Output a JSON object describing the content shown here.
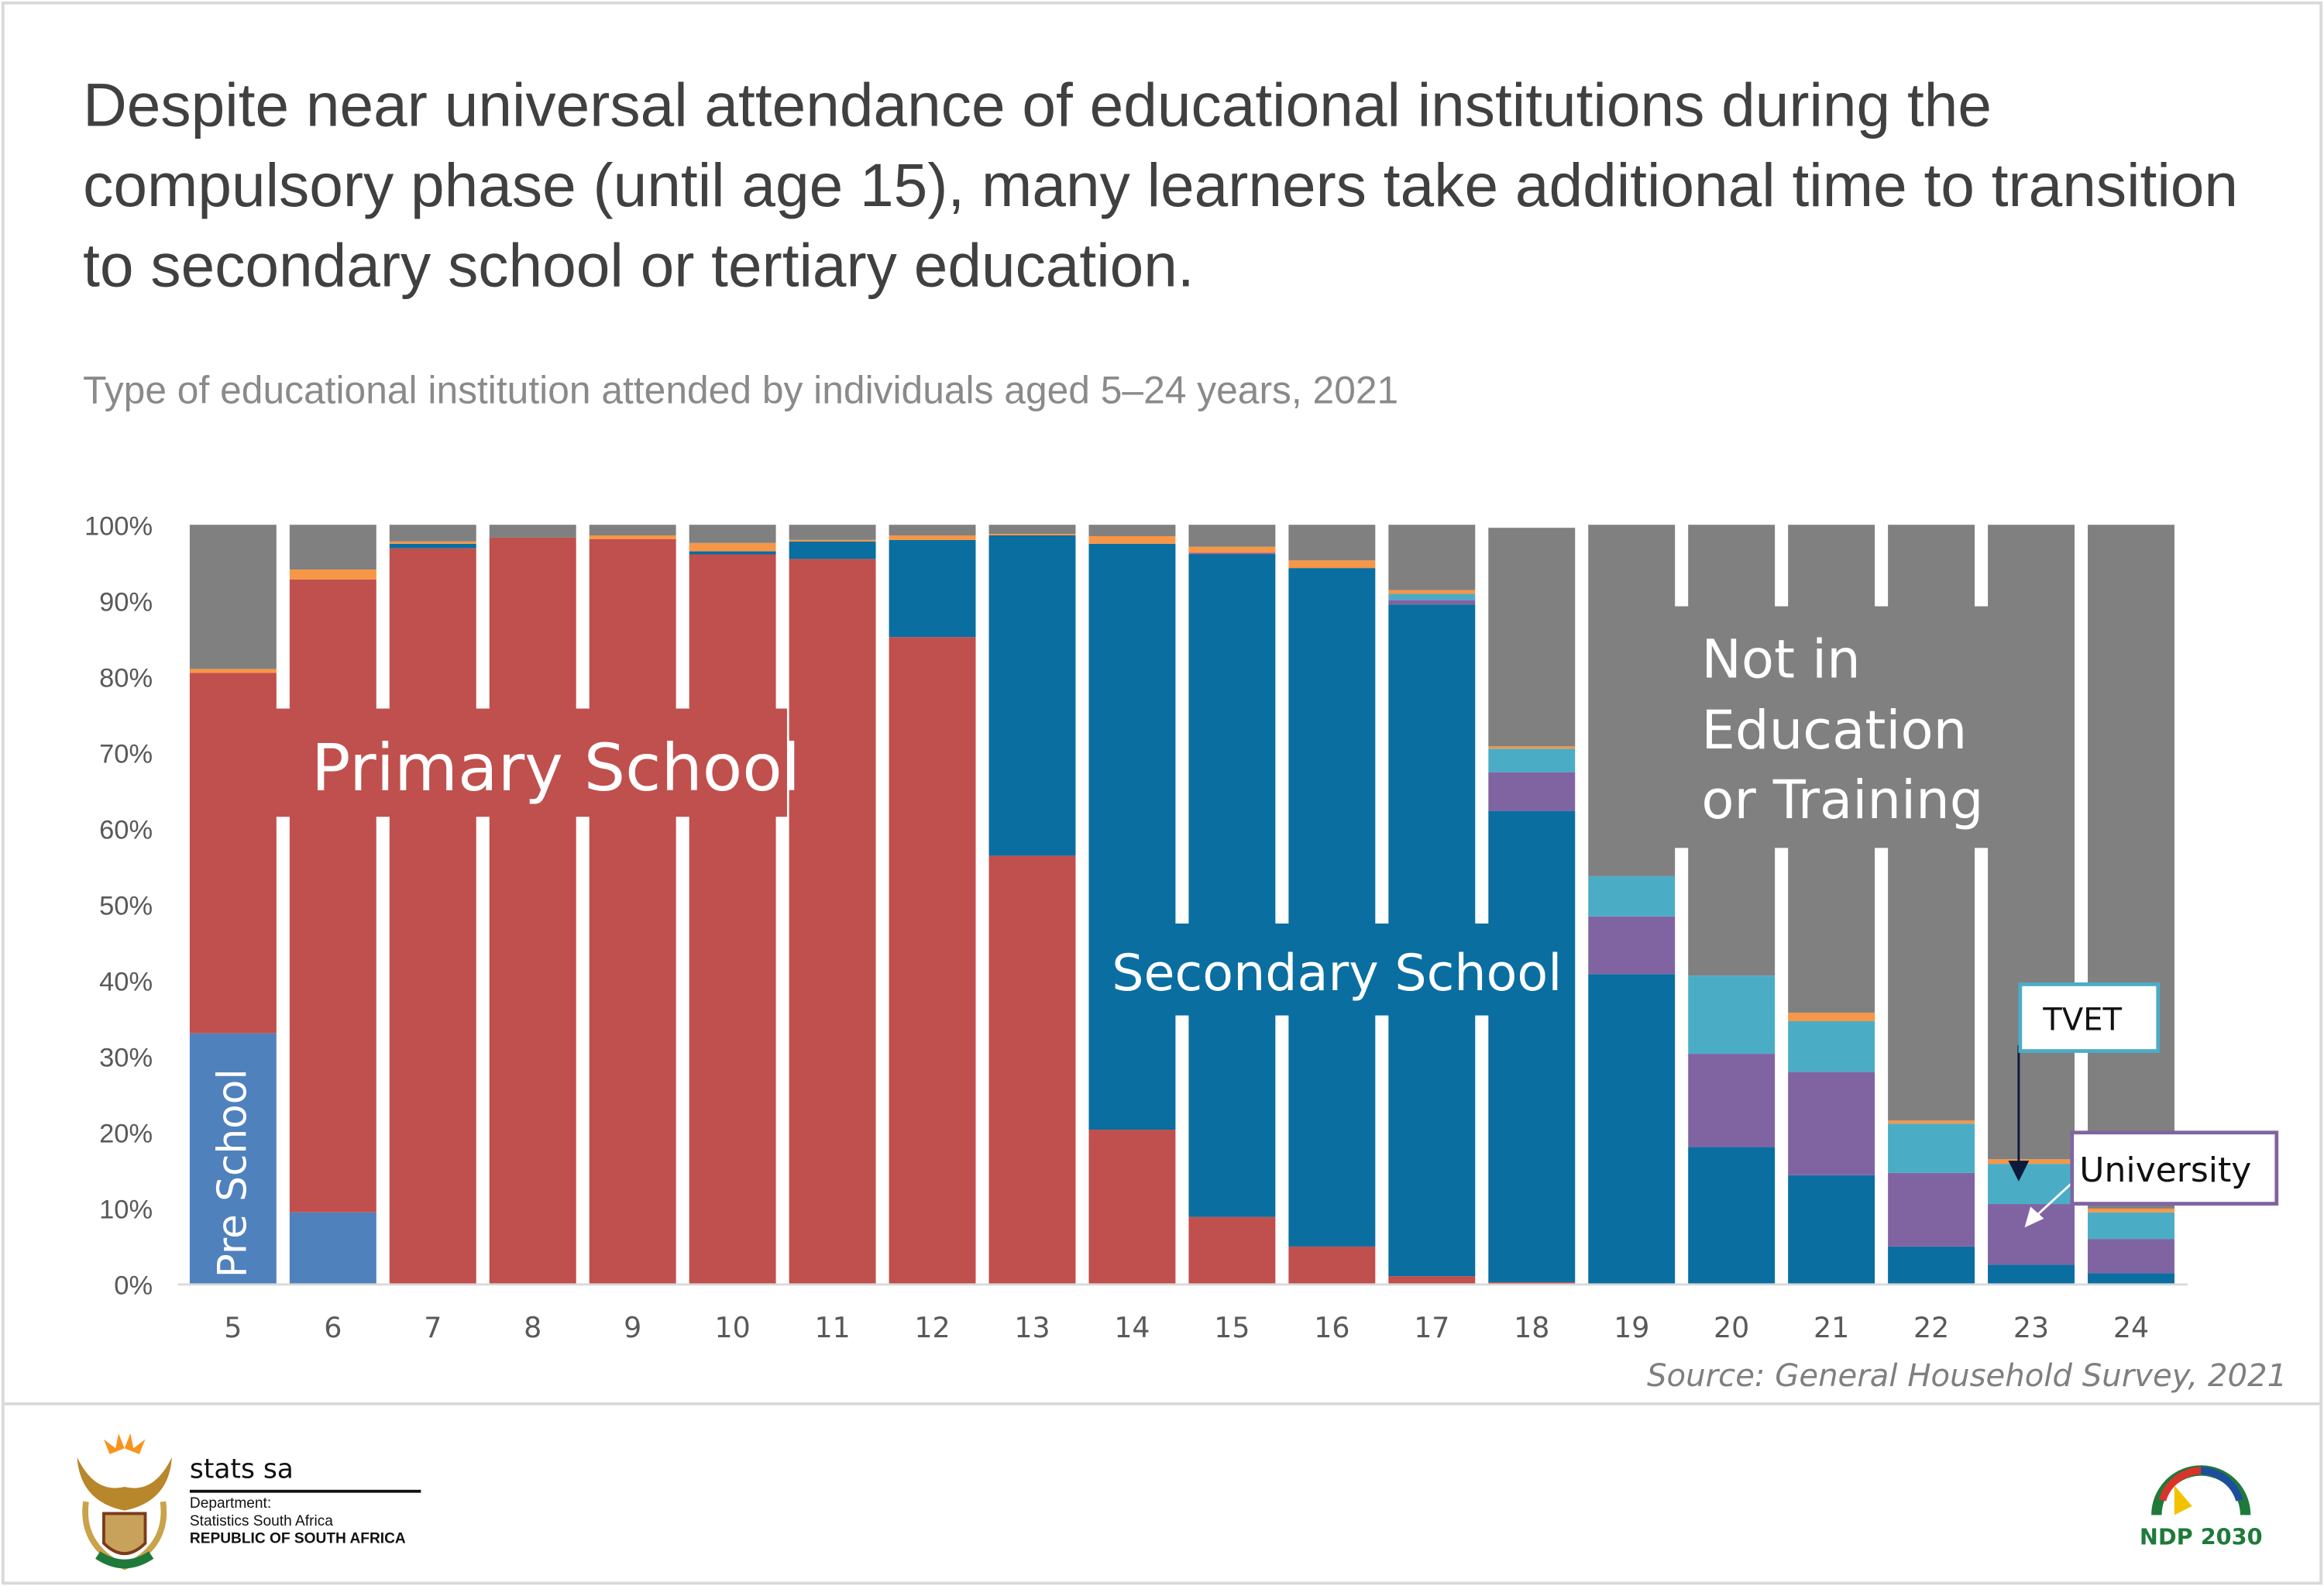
{
  "header": {
    "title": "Despite near universal attendance of educational institutions during the compulsory phase (until age 15), many learners take additional time to transition to secondary school or tertiary education.",
    "subtitle": "Type of educational institution attended by individuals aged 5–24 years, 2021"
  },
  "chart_data": {
    "type": "bar",
    "stacked": true,
    "title": "Type of educational institution attended by individuals aged 5–24 years, 2021",
    "xlabel": "",
    "ylabel": "",
    "ylim": [
      0,
      100
    ],
    "y_ticks": [
      "0%",
      "10%",
      "20%",
      "30%",
      "40%",
      "50%",
      "60%",
      "70%",
      "80%",
      "90%",
      "100%"
    ],
    "grid": false,
    "legend": "none",
    "categories": [
      "5",
      "6",
      "7",
      "8",
      "9",
      "10",
      "11",
      "12",
      "13",
      "14",
      "15",
      "16",
      "17",
      "18",
      "19",
      "20",
      "21",
      "22",
      "23",
      "24"
    ],
    "series": [
      {
        "name": "Pre School",
        "color": "#4F81BD",
        "values": [
          33.0,
          9.4,
          0,
          0,
          0,
          0,
          0,
          0,
          0,
          0,
          0,
          0,
          0,
          0,
          0,
          0,
          0,
          0,
          0,
          0
        ]
      },
      {
        "name": "Primary School",
        "color": "#C0504D",
        "values": [
          47.5,
          83.4,
          96.9,
          98.3,
          98.1,
          96.1,
          95.5,
          85.2,
          56.4,
          20.3,
          8.8,
          4.9,
          1.0,
          0.2,
          0,
          0,
          0,
          0,
          0,
          0
        ]
      },
      {
        "name": "Secondary School",
        "color": "#0A6EA0",
        "values": [
          0,
          0,
          0.6,
          0,
          0,
          0.4,
          2.3,
          12.8,
          42.2,
          77.2,
          87.3,
          89.4,
          88.5,
          62.1,
          40.8,
          18.0,
          14.3,
          4.9,
          2.5,
          1.4
        ]
      },
      {
        "name": "University",
        "color": "#8064A2",
        "values": [
          0,
          0,
          0,
          0,
          0,
          0,
          0,
          0,
          0,
          0,
          0.2,
          0,
          0.6,
          5.1,
          7.6,
          12.3,
          13.6,
          9.7,
          8.0,
          4.5
        ]
      },
      {
        "name": "TVET",
        "color": "#4BACC6",
        "values": [
          0,
          0,
          0,
          0,
          0,
          0,
          0,
          0,
          0,
          0,
          0,
          0,
          0.8,
          3.1,
          5.3,
          10.3,
          6.7,
          6.5,
          5.3,
          3.5
        ]
      },
      {
        "name": "",
        "color": "#F79646",
        "values": [
          0.5,
          1.3,
          0.3,
          0,
          0.5,
          1.1,
          0.2,
          0.6,
          0.2,
          1.0,
          0.8,
          1.0,
          0.5,
          0.3,
          0,
          0,
          1.1,
          0.4,
          0.6,
          0.5
        ]
      },
      {
        "name": "Not in Education or Training",
        "color": "#808080",
        "values": [
          19.0,
          5.9,
          2.2,
          1.7,
          1.4,
          2.4,
          2.0,
          1.4,
          1.2,
          1.5,
          2.9,
          4.7,
          8.6,
          28.8,
          46.3,
          59.4,
          64.3,
          78.5,
          83.6,
          90.1
        ]
      }
    ],
    "annotations": {
      "pre_school": "Pre School",
      "primary": "Primary School",
      "secondary": "Secondary School",
      "not_in_education": [
        "Not in",
        "Education",
        "or Training"
      ],
      "tvet": "TVET",
      "university": "University"
    },
    "source": "Source: General Household Survey, 2021"
  },
  "footer": {
    "stats_name": "stats sa",
    "department": "Department:",
    "department_name": "Statistics South Africa",
    "country": "REPUBLIC OF SOUTH AFRICA",
    "ndp_logo_text": "NDP 2030"
  }
}
